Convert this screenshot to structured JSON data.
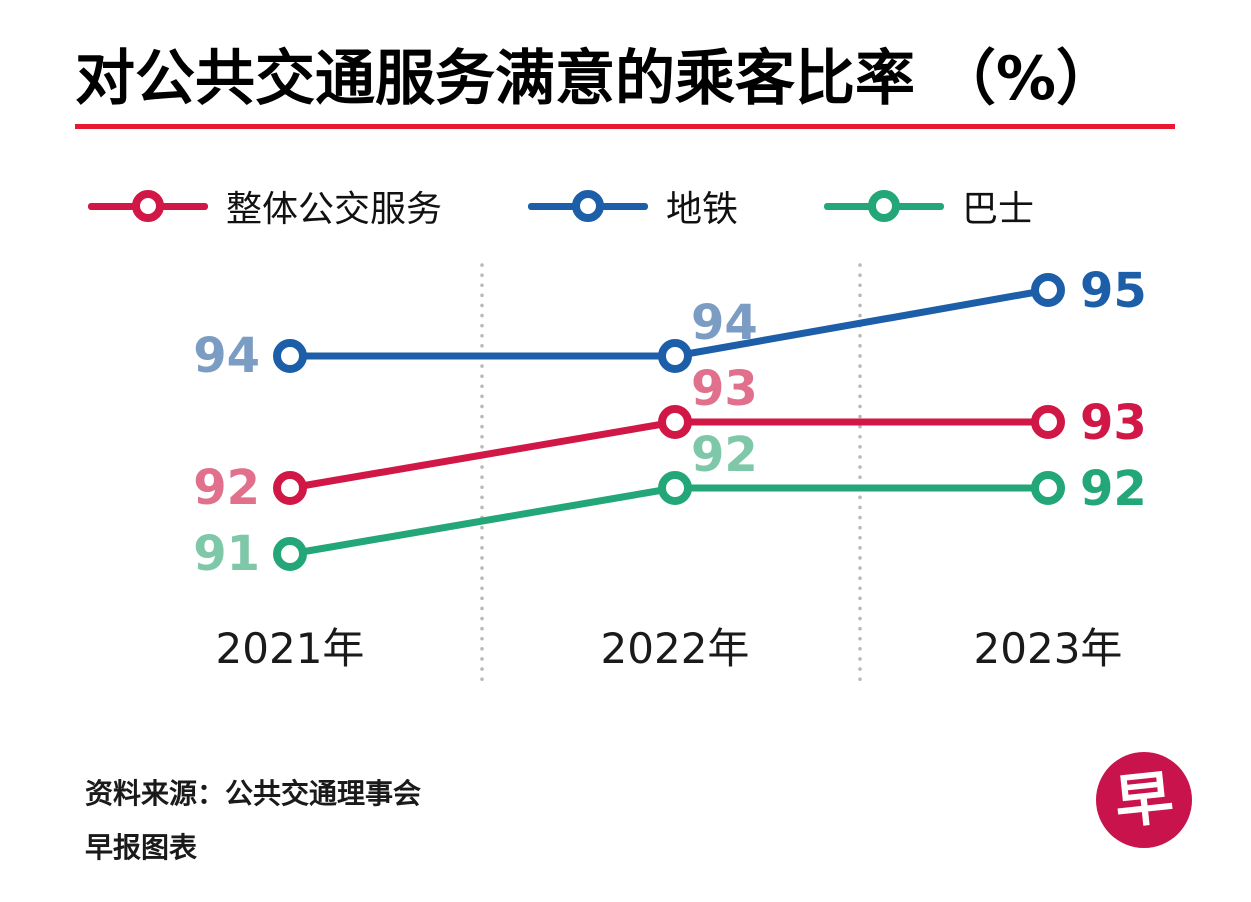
{
  "title": "对公共交通服务满意的乘客比率 （%）",
  "accent": {
    "title_rule_color": "#e8192f",
    "separator_color": "#b8b8b8"
  },
  "chart_data": {
    "type": "line",
    "title": "对公共交通服务满意的乘客比率（%）",
    "categories": [
      "2021年",
      "2022年",
      "2023年"
    ],
    "series": [
      {
        "name": "整体公交服务",
        "values": [
          92,
          93,
          93
        ],
        "color": "#d01746",
        "label_colors": [
          "#e0708c",
          "#e0708c",
          "#d01746"
        ]
      },
      {
        "name": "地铁",
        "values": [
          94,
          94,
          95
        ],
        "color": "#1d5ea9",
        "label_colors": [
          "#7b9cc3",
          "#7b9cc3",
          "#1d5ea9"
        ]
      },
      {
        "name": "巴士",
        "values": [
          91,
          92,
          92
        ],
        "color": "#23a678",
        "label_colors": [
          "#7fc7a9",
          "#7fc7a9",
          "#23a678"
        ]
      }
    ],
    "ylim": [
      90,
      96
    ],
    "xlabel": "",
    "ylabel": "",
    "legend_position": "top",
    "grid": "vertical-dotted-separators-between-years",
    "marker": "open-circle",
    "axis_label_color": "#1a1a1a"
  },
  "footer": {
    "source": "资料来源：公共交通理事会",
    "credit": "早报图表",
    "logo_char": "早",
    "logo_color": "#c9134d"
  }
}
